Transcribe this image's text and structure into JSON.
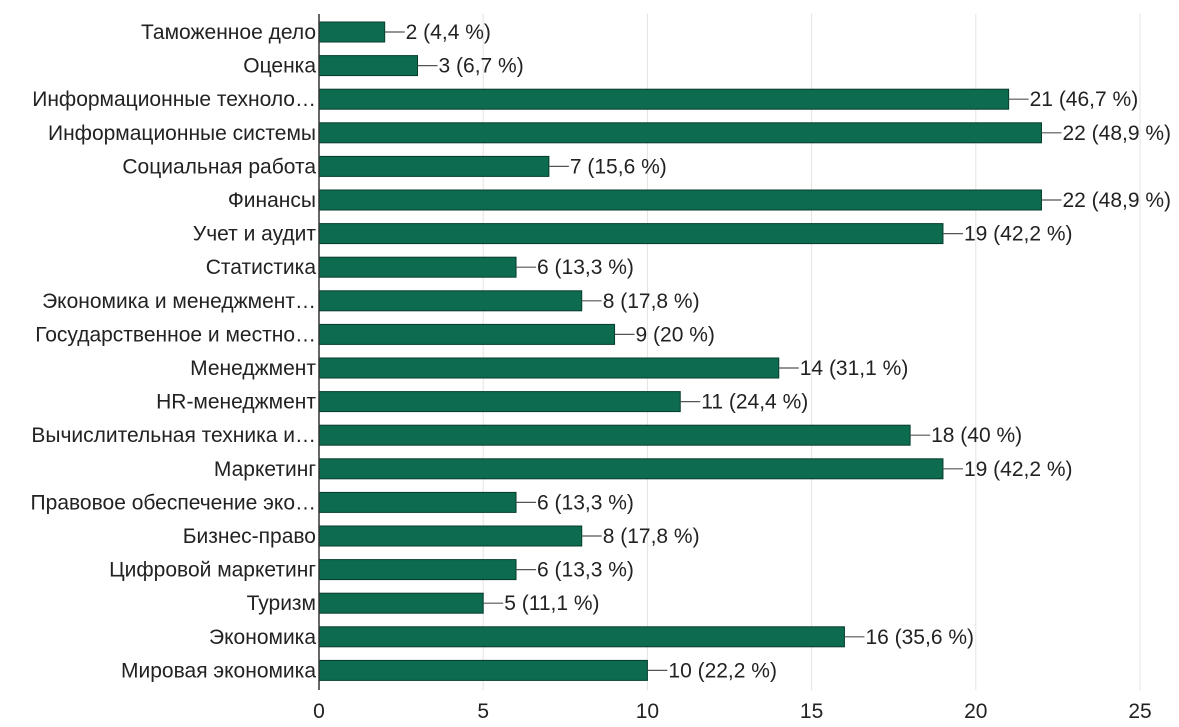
{
  "chart_data": {
    "type": "bar",
    "orientation": "horizontal",
    "title": "",
    "xlabel": "",
    "ylabel": "",
    "xlim": [
      0,
      25
    ],
    "xticks": [
      0,
      5,
      10,
      15,
      20,
      25
    ],
    "grid": true,
    "bar_color": "#0d6b4f",
    "categories": [
      "Таможенное дело",
      "Оценка",
      "Информационные техноло…",
      "Информационные системы",
      "Социальная работа",
      "Финансы",
      "Учет и аудит",
      "Статистика",
      "Экономика и менеджмент…",
      "Государственное и местно…",
      "Менеджмент",
      "HR-менеджмент",
      "Вычислительная техника и…",
      "Маркетинг",
      "Правовое обеспечение эко…",
      "Бизнес-право",
      "Цифровой маркетинг",
      "Туризм",
      "Экономика",
      "Мировая экономика"
    ],
    "values": [
      2,
      3,
      21,
      22,
      7,
      22,
      19,
      6,
      8,
      9,
      14,
      11,
      18,
      19,
      6,
      8,
      6,
      5,
      16,
      10
    ],
    "value_labels": [
      "2 (4,4 %)",
      "3 (6,7 %)",
      "21 (46,7 %)",
      "22 (48,9 %)",
      "7 (15,6 %)",
      "22 (48,9 %)",
      "19 (42,2 %)",
      "6 (13,3 %)",
      "8 (17,8 %)",
      "9 (20 %)",
      "14 (31,1 %)",
      "11 (24,4 %)",
      "18 (40 %)",
      "19 (42,2 %)",
      "6 (13,3 %)",
      "8 (17,8 %)",
      "6 (13,3 %)",
      "5 (11,1 %)",
      "16 (35,6 %)",
      "10 (22,2 %)"
    ]
  }
}
